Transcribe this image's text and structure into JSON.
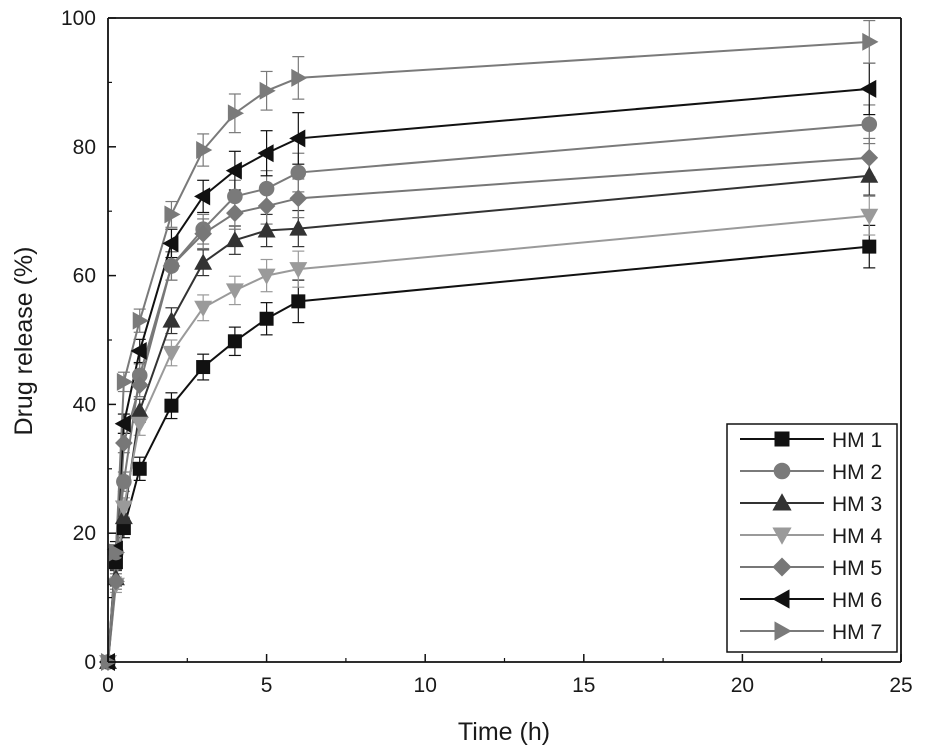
{
  "chart_data": {
    "type": "line",
    "title": "",
    "xlabel": "Time (h)",
    "ylabel": "Drug release (%)",
    "xlim": [
      0,
      25
    ],
    "ylim": [
      0,
      100
    ],
    "xticks": [
      0,
      5,
      10,
      15,
      20,
      25
    ],
    "yticks": [
      0,
      20,
      40,
      60,
      80,
      100
    ],
    "grid": false,
    "legend_position": "bottom-right",
    "x": [
      0,
      0.25,
      0.5,
      1,
      2,
      3,
      4,
      5,
      6,
      24
    ],
    "series": [
      {
        "name": "HM 1",
        "marker": "square",
        "color": "#111111",
        "values": [
          0,
          15.5,
          20.8,
          30,
          39.8,
          45.8,
          49.8,
          53.3,
          56,
          64.5
        ],
        "errors": [
          0,
          1.2,
          1.5,
          1.8,
          2,
          2,
          2.2,
          2.5,
          3.3,
          3.3
        ]
      },
      {
        "name": "HM 2",
        "marker": "circle",
        "color": "#7a7a7a",
        "values": [
          0,
          17,
          28,
          44.5,
          61.5,
          67.2,
          72.3,
          73.5,
          76,
          83.5
        ],
        "errors": [
          0,
          1.2,
          1.5,
          1.8,
          2.2,
          2.3,
          2.5,
          2.8,
          3,
          3
        ]
      },
      {
        "name": "HM 3",
        "marker": "triangle-up",
        "color": "#333333",
        "values": [
          0,
          13,
          22.5,
          39,
          53,
          62,
          65.5,
          67,
          67.3,
          75.5
        ],
        "errors": [
          0,
          1.2,
          1.5,
          1.8,
          2,
          2,
          2.2,
          2.5,
          2.8,
          3
        ]
      },
      {
        "name": "HM 4",
        "marker": "triangle-down",
        "color": "#9a9a9a",
        "values": [
          0,
          12,
          24,
          37,
          48,
          55,
          57.7,
          60,
          61,
          69.3
        ],
        "errors": [
          0,
          1.2,
          1.5,
          1.8,
          2,
          2,
          2.2,
          2.5,
          2.8,
          3
        ]
      },
      {
        "name": "HM 5",
        "marker": "diamond",
        "color": "#777777",
        "values": [
          0,
          12.5,
          34,
          43,
          61.5,
          66.5,
          69.7,
          70.8,
          72,
          78.3
        ],
        "errors": [
          0,
          1.2,
          1.5,
          1.8,
          2.2,
          2.3,
          2.5,
          2.8,
          3,
          3
        ]
      },
      {
        "name": "HM 6",
        "marker": "triangle-left",
        "color": "#111111",
        "values": [
          0,
          17.5,
          37,
          48.3,
          65,
          72.3,
          76.3,
          79,
          81.3,
          89
        ],
        "errors": [
          0,
          1.2,
          1.5,
          1.8,
          2.2,
          2.5,
          3,
          3.5,
          4,
          4
        ]
      },
      {
        "name": "HM 7",
        "marker": "triangle-right",
        "color": "#7a7a7a",
        "values": [
          0,
          17,
          43.5,
          53,
          69.5,
          79.5,
          85.2,
          88.7,
          90.7,
          96.3
        ],
        "errors": [
          0,
          1.2,
          1.5,
          1.8,
          2,
          2.5,
          3,
          3,
          3.3,
          3.3
        ]
      }
    ]
  }
}
